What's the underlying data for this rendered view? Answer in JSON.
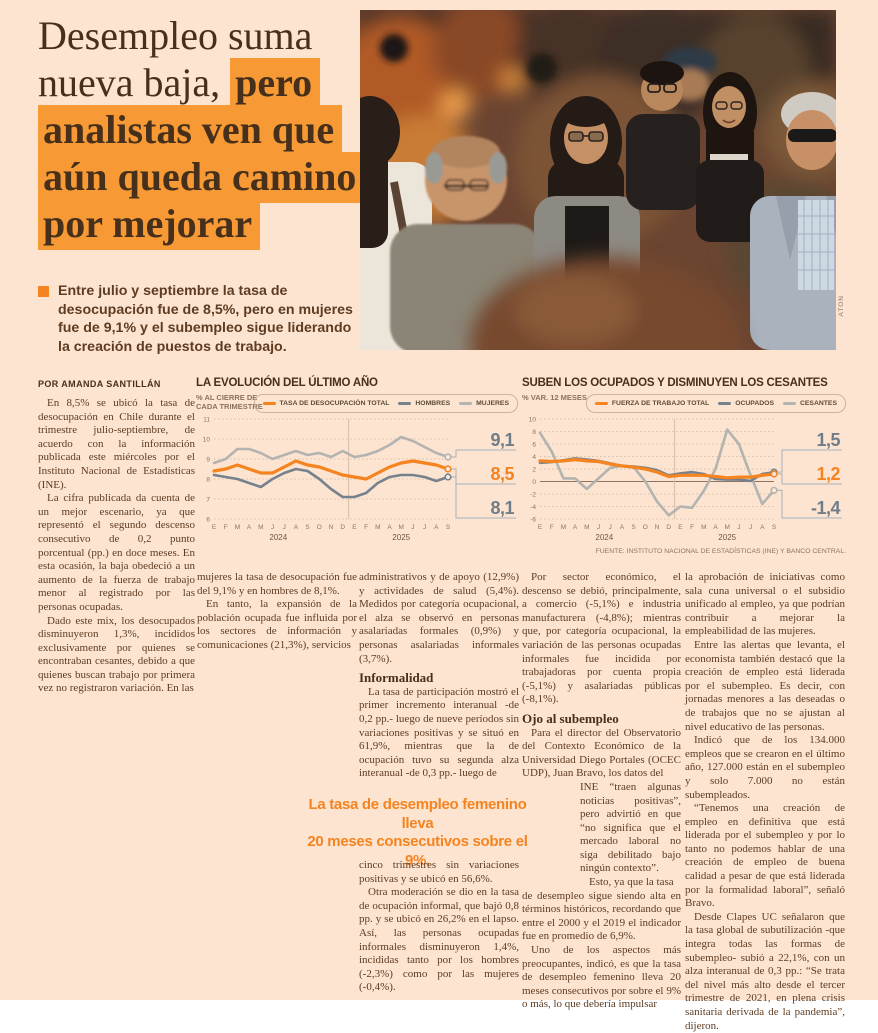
{
  "page": {
    "background": "#fce4d1",
    "accent_orange": "#f5831f",
    "highlight_orange": "#f79a35"
  },
  "headline": {
    "lines": [
      {
        "plain": "Desempleo suma",
        "mark": ""
      },
      {
        "plain": "nueva baja, ",
        "mark": "pero"
      },
      {
        "plain": "",
        "mark": "analistas ven que"
      },
      {
        "plain": "",
        "mark": "aún queda camino"
      },
      {
        "plain": "",
        "mark": "por mejorar"
      }
    ]
  },
  "photo": {
    "credit": "ATON",
    "description": "Peatones caminando por una calle, mujer con lentes al centro"
  },
  "summary": {
    "text": "Entre julio y septiembre la tasa de desocupación fue de 8,5%, pero en mujeres fue de 9,1% y el subempleo sigue liderando la creación de puestos de trabajo."
  },
  "byline": "POR AMANDA SANTILLÁN",
  "pull_quote": {
    "line1": "La tasa de desempleo femenino lleva",
    "line2": "20 meses consecutivos sobre el 9%."
  },
  "charts_source": "FUENTE: INSTITUTO NACIONAL DE ESTADÍSTICAS (INE) Y BANCO CENTRAL.",
  "chart_data": [
    {
      "type": "line",
      "title": "LA EVOLUCIÓN DEL ÚLTIMO AÑO",
      "subtitle": "% AL CIERRE DE\nCADA TRIMESTRE",
      "x_labels": [
        "E",
        "F",
        "M",
        "A",
        "M",
        "J",
        "J",
        "A",
        "S",
        "O",
        "N",
        "D",
        "E",
        "F",
        "M",
        "A",
        "M",
        "J",
        "J",
        "A",
        "S"
      ],
      "year_labels": [
        "2024",
        "2025"
      ],
      "ylim": [
        6,
        11
      ],
      "yticks": [
        6,
        7,
        8,
        9,
        10,
        11
      ],
      "grid": "dotted",
      "legend_position": "top-right",
      "series": [
        {
          "name": "TASA DE DESOCUPACIÓN TOTAL",
          "color": "#f5831f",
          "label_color": "#f5831f",
          "end_label": "8,5",
          "values": [
            8.4,
            8.5,
            8.7,
            8.5,
            8.3,
            8.3,
            8.6,
            8.9,
            8.7,
            8.6,
            8.4,
            8.2,
            8.1,
            8.0,
            8.3,
            8.6,
            8.8,
            8.9,
            8.8,
            8.7,
            8.5
          ]
        },
        {
          "name": "HOMBRES",
          "color": "#75828e",
          "label_color": "#6f7d89",
          "end_label": "8,1",
          "values": [
            8.2,
            8.1,
            8.0,
            7.8,
            7.6,
            8.0,
            8.3,
            8.5,
            8.4,
            8.0,
            7.5,
            7.1,
            7.1,
            7.3,
            7.8,
            8.1,
            8.2,
            8.2,
            8.1,
            7.9,
            8.1
          ]
        },
        {
          "name": "MUJERES",
          "color": "#b3b3b0",
          "label_color": "#6f7d89",
          "end_label": "9,1",
          "values": [
            8.8,
            9.0,
            9.5,
            9.5,
            9.3,
            9.0,
            9.2,
            9.4,
            9.2,
            9.3,
            9.1,
            9.4,
            9.1,
            9.2,
            9.4,
            9.7,
            10.1,
            9.9,
            9.6,
            9.3,
            9.1
          ]
        }
      ]
    },
    {
      "type": "line",
      "title": "SUBEN LOS OCUPADOS Y DISMINUYEN LOS CESANTES",
      "subtitle": "% VAR. 12 MESES",
      "x_labels": [
        "E",
        "F",
        "M",
        "A",
        "M",
        "J",
        "J",
        "A",
        "S",
        "O",
        "N",
        "D",
        "E",
        "F",
        "M",
        "A",
        "M",
        "J",
        "J",
        "A",
        "S"
      ],
      "year_labels": [
        "2024",
        "2025"
      ],
      "ylim": [
        -6,
        10
      ],
      "yticks": [
        -6,
        -4,
        -2,
        0,
        2,
        4,
        6,
        8,
        10
      ],
      "grid": "dotted",
      "legend_position": "top-right",
      "series": [
        {
          "name": "FUERZA DE TRABAJO TOTAL",
          "color": "#f5831f",
          "label_color": "#f5831f",
          "end_label": "1,2",
          "values": [
            3.3,
            3.2,
            3.3,
            3.5,
            3.3,
            3.2,
            2.8,
            2.5,
            2.3,
            2.0,
            1.5,
            0.8,
            1.0,
            1.0,
            1.0,
            0.8,
            0.6,
            0.7,
            0.7,
            1.0,
            1.2
          ]
        },
        {
          "name": "OCUPADOS",
          "color": "#75828e",
          "label_color": "#6f7d89",
          "end_label": "1,5",
          "values": [
            3.0,
            3.1,
            3.4,
            3.7,
            3.5,
            3.3,
            2.9,
            2.5,
            2.4,
            2.2,
            1.8,
            1.0,
            1.3,
            1.5,
            1.2,
            0.4,
            0.3,
            0.3,
            0.1,
            1.2,
            1.5
          ]
        },
        {
          "name": "CESANTES",
          "color": "#b3b3b0",
          "label_color": "#6f7d89",
          "end_label": "-1,4",
          "values": [
            7.8,
            4.8,
            0.5,
            0.5,
            -1.2,
            0.5,
            2.2,
            2.5,
            2.3,
            0.0,
            -3.2,
            -5.4,
            -4.0,
            -4.2,
            -1.5,
            2.0,
            8.3,
            6.0,
            1.0,
            -3.6,
            -1.4
          ]
        }
      ]
    }
  ],
  "article": {
    "col1": {
      "paras": [
        "En 8,5% se ubicó la tasa de desocupación en Chile durante el trimestre julio-septiembre, de acuerdo con la información publicada este miércoles por el Instituto Nacional de Estadísticas (INE).",
        "La cifra publicada da cuenta de un mejor escenario, ya que representó el segundo descenso consecutivo de 0,2 punto porcentual (pp.) en doce meses. En esta ocasión, la baja obedeció a un aumento de la fuerza de trabajo menor al registrado por las personas ocupadas.",
        "Dado este mix, los desocupados disminuyeron 1,3%, incididos exclusivamente por quienes se encontraban cesantes, debido a que quienes buscan trabajo por primera vez no registraron variación. En las"
      ]
    },
    "col2": {
      "paras": [
        "mujeres la tasa de desocupación fue del 9,1% y en hombres de 8,1%.",
        "En tanto, la expansión de la población ocupada fue influida por los sectores de información y comunicaciones (21,3%), servicios"
      ]
    },
    "col3a": {
      "para1": "administrativos y de apoyo (12,9%) y actividades de salud (5,4%). Medidos por categoría ocupacional, el alza se observó en personas asalariadas formales (0,9%) y personas asalariadas informales (3,7%).",
      "subhead": "Informalidad",
      "para2": "La tasa de participación mostró el primer incremento interanual -de 0,2 pp.- luego de nueve períodos sin variaciones positivas y se situó en 61,9%, mientras que la de ocupación tuvo su segunda alza interanual -de 0,3 pp.- luego de"
    },
    "col3b": {
      "paras": [
        "cinco trimestres sin variaciones positivas y se ubicó en 56,6%.",
        "Otra moderación se dio en la tasa de ocupación informal, que bajó 0,8 pp. y se ubicó en 26,2% en el lapso. Así, las personas ocupadas informales disminuyeron 1,4%, incididas tanto por los hombres (-2,3%) como por las mujeres (-0,4%)."
      ]
    },
    "col4": {
      "para1": "Por sector económico, el descenso se debió, principalmente, a comercio (-5,1%) e industria manufacturera (-4,8%); mientras que, por categoría ocupacional, la variación de las personas ocupadas informales fue incidida por trabajadoras por cuenta propia (-5,1%) y asalariadas públicas (-8,1%).",
      "subhead": "Ojo al subempleo",
      "para2": "Para el director del Observatorio del Contexto Económico de la Universidad Diego Portales (OCEC UDP), Juan Bravo, los datos del",
      "narrow1": "INE “traen algunas noticias positivas”, pero advirtió en que “no significa que el mercado laboral no siga debilitado bajo ningún contexto”.",
      "narrow2": "Esto, ya que la tasa",
      "para3": "de desempleo sigue siendo alta en términos históricos, recordando que entre el 2000 y el 2019 el indicador fue en promedio de 6,9%.",
      "para4": "Uno de los aspectos más preocupantes, indicó, es que la tasa de desempleo femenino lleva 20 meses consecutivos por sobre el 9% o más, lo que debería impulsar"
    },
    "col5": {
      "paras": [
        "la aprobación de iniciativas como sala cuna universal o el subsidio unificado al empleo, ya que podrían contribuir a mejorar la empleabilidad de las mujeres.",
        "Entre las alertas que levanta, el economista también destacó que la creación de empleo está liderada por el subempleo. Es decir, con jornadas menores a las deseadas o de trabajos que no se ajustan al nivel educativo de las personas.",
        "Indicó que de los 134.000 empleos que se crearon en el último año, 127.000 están en el subempleo y solo 7.000 no están subempleados.",
        "“Tenemos una creación de empleo en definitiva que está liderada por el subempleo y por lo tanto no podemos hablar de una creación de empleo de buena calidad a pesar de que está liderada por la formalidad laboral”, señaló Bravo.",
        "Desde Clapes UC señalaron que la tasa global de subutilización -que integra todas las formas de subempleo- subió a 22,1%, con un alza interanual de 0,3 pp.: “Se trata del nivel más alto desde el tercer trimestre de 2021, en plena crisis sanitaria derivada de la pandemia”, dijeron."
      ]
    }
  }
}
